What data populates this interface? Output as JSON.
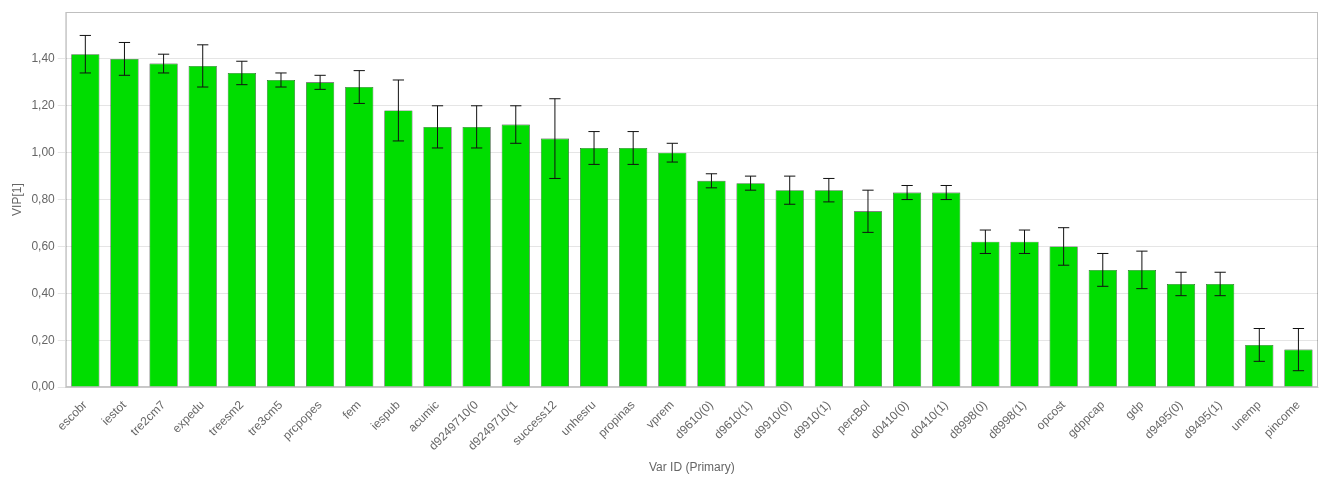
{
  "chart_data": {
    "type": "bar",
    "categories": [
      "escobr",
      "iestot",
      "tre2cm7",
      "expedu",
      "treesm2",
      "tre3cm5",
      "prcpopes",
      "fem",
      "iespub",
      "acumic",
      "d9249710(0",
      "d9249710(1",
      "success12",
      "unhesru",
      "propinas",
      "vprem",
      "d9610(0)",
      "d9610(1)",
      "d9910(0)",
      "d9910(1)",
      "percBol",
      "d0410(0)",
      "d0410(1)",
      "d8998(0)",
      "d8998(1)",
      "opcost",
      "gdppcap",
      "gdp",
      "d9495(0)",
      "d9495(1)",
      "unemp",
      "pincome"
    ],
    "values": [
      1.42,
      1.4,
      1.38,
      1.37,
      1.34,
      1.31,
      1.3,
      1.28,
      1.18,
      1.11,
      1.11,
      1.12,
      1.06,
      1.02,
      1.02,
      1.0,
      0.88,
      0.87,
      0.84,
      0.84,
      0.75,
      0.83,
      0.83,
      0.62,
      0.62,
      0.6,
      0.5,
      0.5,
      0.44,
      0.44,
      0.18,
      0.16
    ],
    "errors": [
      0.08,
      0.07,
      0.04,
      0.09,
      0.05,
      0.03,
      0.03,
      0.07,
      0.13,
      0.09,
      0.09,
      0.08,
      0.17,
      0.07,
      0.07,
      0.04,
      0.03,
      0.03,
      0.06,
      0.05,
      0.09,
      0.03,
      0.03,
      0.05,
      0.05,
      0.08,
      0.07,
      0.08,
      0.05,
      0.05,
      0.07,
      0.09
    ],
    "color": "#00dd00",
    "xlabel": "Var ID (Primary)",
    "ylabel": "VIP[1]",
    "ylim": [
      0.0,
      1.6
    ],
    "yticks": [
      {
        "value": 0.0,
        "label": "0,00"
      },
      {
        "value": 0.2,
        "label": "0,20"
      },
      {
        "value": 0.4,
        "label": "0,40"
      },
      {
        "value": 0.6,
        "label": "0,60"
      },
      {
        "value": 0.8,
        "label": "0,80"
      },
      {
        "value": 1.0,
        "label": "1,00"
      },
      {
        "value": 1.2,
        "label": "1,20"
      },
      {
        "value": 1.4,
        "label": "1,40"
      }
    ],
    "grid": true
  }
}
